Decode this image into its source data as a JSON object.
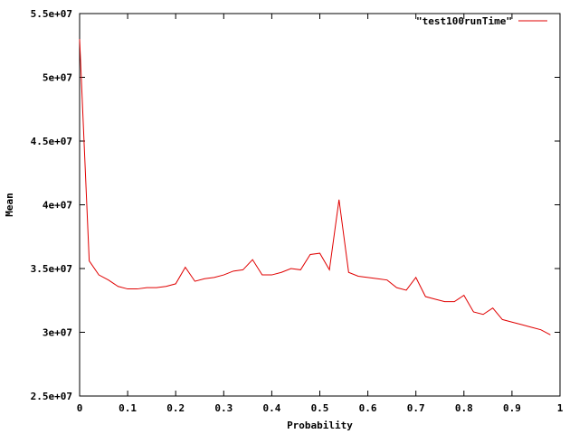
{
  "chart_data": {
    "type": "line",
    "title": "",
    "xlabel": "Probability",
    "ylabel": "Mean",
    "xlim": [
      0,
      1
    ],
    "ylim": [
      25000000,
      55000000
    ],
    "grid": false,
    "legend_position": "top-right",
    "x_ticks": [
      {
        "value": 0,
        "label": "0"
      },
      {
        "value": 0.1,
        "label": "0.1"
      },
      {
        "value": 0.2,
        "label": "0.2"
      },
      {
        "value": 0.3,
        "label": "0.3"
      },
      {
        "value": 0.4,
        "label": "0.4"
      },
      {
        "value": 0.5,
        "label": "0.5"
      },
      {
        "value": 0.6,
        "label": "0.6"
      },
      {
        "value": 0.7,
        "label": "0.7"
      },
      {
        "value": 0.8,
        "label": "0.8"
      },
      {
        "value": 0.9,
        "label": "0.9"
      },
      {
        "value": 1,
        "label": "1"
      }
    ],
    "y_ticks": [
      {
        "value": 25000000,
        "label": "2.5e+07"
      },
      {
        "value": 30000000,
        "label": "3e+07"
      },
      {
        "value": 35000000,
        "label": "3.5e+07"
      },
      {
        "value": 40000000,
        "label": "4e+07"
      },
      {
        "value": 45000000,
        "label": "4.5e+07"
      },
      {
        "value": 50000000,
        "label": "5e+07"
      },
      {
        "value": 55000000,
        "label": "5.5e+07"
      }
    ],
    "series": [
      {
        "name": "\"test100runTime\"",
        "color": "#e00000",
        "x": [
          0,
          0.02,
          0.04,
          0.06,
          0.08,
          0.1,
          0.12,
          0.14,
          0.16,
          0.18,
          0.2,
          0.22,
          0.24,
          0.26,
          0.28,
          0.3,
          0.32,
          0.34,
          0.36,
          0.38,
          0.4,
          0.42,
          0.44,
          0.46,
          0.48,
          0.5,
          0.52,
          0.54,
          0.56,
          0.58,
          0.6,
          0.62,
          0.64,
          0.66,
          0.68,
          0.7,
          0.72,
          0.74,
          0.76,
          0.78,
          0.8,
          0.82,
          0.84,
          0.86,
          0.88,
          0.9,
          0.92,
          0.94,
          0.96,
          0.98
        ],
        "y": [
          53000000,
          35600000,
          34500000,
          34100000,
          33600000,
          33400000,
          33400000,
          33500000,
          33500000,
          33600000,
          33800000,
          35100000,
          34000000,
          34200000,
          34300000,
          34500000,
          34800000,
          34900000,
          35700000,
          34500000,
          34500000,
          34700000,
          35000000,
          34900000,
          36100000,
          36200000,
          34900000,
          40400000,
          34700000,
          34400000,
          34300000,
          34200000,
          34100000,
          33500000,
          33300000,
          34300000,
          32800000,
          32600000,
          32400000,
          32400000,
          32900000,
          31600000,
          31400000,
          31900000,
          31000000,
          30800000,
          30600000,
          30400000,
          30200000,
          29800000
        ]
      }
    ]
  }
}
